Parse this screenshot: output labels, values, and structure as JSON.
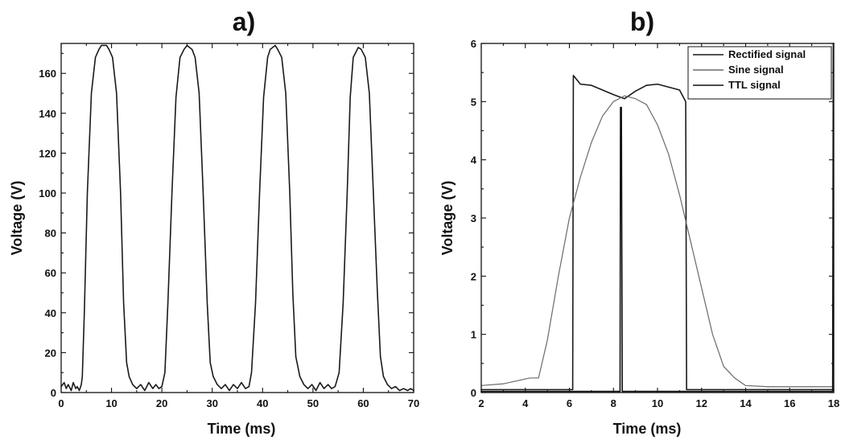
{
  "chart_data": [
    {
      "type": "line",
      "title": "a)",
      "xlabel": "Time (ms)",
      "ylabel": "Voltage (V)",
      "xlim": [
        0,
        70
      ],
      "ylim": [
        0,
        175
      ],
      "xticks": [
        0,
        10,
        20,
        30,
        40,
        50,
        60,
        70
      ],
      "yticks": [
        0,
        20,
        40,
        60,
        80,
        100,
        120,
        140,
        160
      ],
      "grid": false,
      "series": [
        {
          "color": "#1a1a1a",
          "x": [
            0,
            0.6,
            1.0,
            1.4,
            2.0,
            2.4,
            2.9,
            3.2,
            3.6,
            4.0,
            4.2,
            4.6,
            5.2,
            6.0,
            6.8,
            7.5,
            8.0,
            9.0,
            9.5,
            10.2,
            11.0,
            11.8,
            12.4,
            13.0,
            13.5,
            14.2,
            15.0,
            15.8,
            16.6,
            17.4,
            18.2,
            18.8,
            19.4,
            20.0,
            20.6,
            21.2,
            22.0,
            22.8,
            23.6,
            24.4,
            25.0,
            26.0,
            26.6,
            27.4,
            28.2,
            29.0,
            29.6,
            30.2,
            31.0,
            31.8,
            32.6,
            33.4,
            34.2,
            35.0,
            35.8,
            36.6,
            37.3,
            37.8,
            38.6,
            39.4,
            40.2,
            41.0,
            41.5,
            42.5,
            43.0,
            43.8,
            44.6,
            45.4,
            46.0,
            46.6,
            47.4,
            48.2,
            49.0,
            49.8,
            50.6,
            51.4,
            52.2,
            53.0,
            53.7,
            54.4,
            55.2,
            56.0,
            56.8,
            57.4,
            58.0,
            59.0,
            59.6,
            60.4,
            61.2,
            62.0,
            62.8,
            63.4,
            64.0,
            64.8,
            65.6,
            66.4,
            67.2,
            68.0,
            68.8,
            69.4,
            70.0
          ],
          "y": [
            3,
            5,
            2,
            4,
            1,
            5,
            2,
            3,
            1,
            4,
            8,
            40,
            100,
            150,
            168,
            172,
            174,
            174,
            172,
            168,
            150,
            100,
            45,
            15,
            8,
            4,
            2,
            4,
            1,
            5,
            2,
            4,
            2,
            3,
            10,
            45,
            100,
            148,
            168,
            172,
            174,
            172,
            168,
            150,
            100,
            45,
            15,
            8,
            4,
            2,
            4,
            1,
            4,
            2,
            5,
            2,
            3,
            10,
            45,
            100,
            148,
            168,
            172,
            174,
            172,
            168,
            150,
            100,
            50,
            18,
            8,
            4,
            2,
            4,
            1,
            5,
            2,
            4,
            2,
            3,
            10,
            45,
            100,
            148,
            168,
            173,
            172,
            168,
            150,
            100,
            50,
            18,
            8,
            4,
            2,
            3,
            1,
            2,
            1,
            2,
            1
          ]
        }
      ]
    },
    {
      "type": "line",
      "title": "b)",
      "xlabel": "Time (ms)",
      "ylabel": "Voltage (V)",
      "xlim": [
        2,
        18
      ],
      "ylim": [
        0,
        6
      ],
      "xticks": [
        2,
        4,
        6,
        8,
        10,
        12,
        14,
        16,
        18
      ],
      "yticks": [
        0,
        1,
        2,
        3,
        4,
        5,
        6
      ],
      "grid": false,
      "legend": "top-right",
      "series": [
        {
          "name": "Rectified signal",
          "color": "#1a1a1a",
          "x": [
            2,
            3,
            4,
            4.4,
            5,
            5.6,
            6.15,
            6.18,
            6.5,
            7,
            7.5,
            8,
            8.5,
            9,
            9.5,
            10,
            10.5,
            11,
            11.28,
            11.32,
            12,
            13,
            14,
            15,
            16,
            17,
            18
          ],
          "y": [
            0.05,
            0.05,
            0.05,
            0.05,
            0.05,
            0.05,
            0.05,
            5.45,
            5.3,
            5.28,
            5.2,
            5.12,
            5.05,
            5.18,
            5.28,
            5.3,
            5.25,
            5.2,
            5.0,
            0.05,
            0.05,
            0.05,
            0.05,
            0.05,
            0.05,
            0.05,
            0.05
          ]
        },
        {
          "name": "Sine signal",
          "color": "#6a6a6a",
          "x": [
            2,
            3,
            3.6,
            4.2,
            4.6,
            5,
            5.5,
            6,
            6.5,
            7,
            7.5,
            8,
            8.5,
            9,
            9.5,
            10,
            10.5,
            11,
            11.5,
            12,
            12.5,
            13,
            13.5,
            14,
            15,
            16,
            17,
            18
          ],
          "y": [
            0.12,
            0.15,
            0.2,
            0.25,
            0.25,
            0.9,
            2.0,
            3.0,
            3.7,
            4.3,
            4.75,
            5.0,
            5.1,
            5.05,
            4.95,
            4.6,
            4.1,
            3.4,
            2.6,
            1.8,
            1.0,
            0.45,
            0.25,
            0.12,
            0.1,
            0.1,
            0.1,
            0.1
          ]
        },
        {
          "name": "TTL signal",
          "color": "#111111",
          "x": [
            2,
            4,
            6,
            8.3,
            8.32,
            8.36,
            8.4,
            10,
            12,
            14,
            16,
            17.95,
            17.98,
            18
          ],
          "y": [
            0.02,
            0.02,
            0.02,
            0.02,
            4.9,
            4.9,
            0.02,
            0.02,
            0.02,
            0.02,
            0.02,
            0.02,
            6.0,
            6.0
          ]
        }
      ]
    }
  ]
}
